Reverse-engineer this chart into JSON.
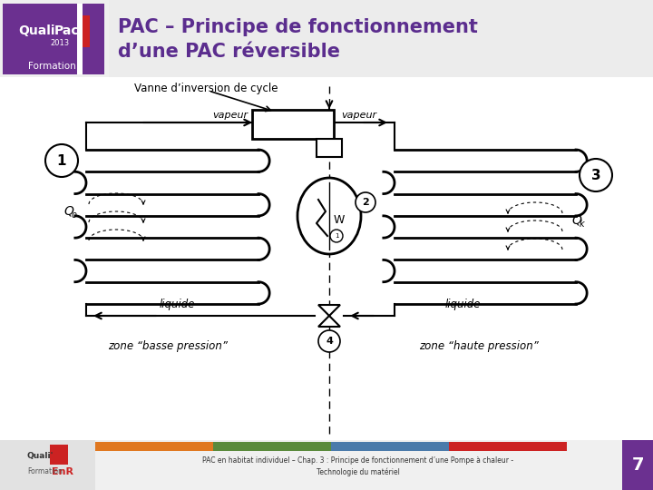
{
  "title_line1": "PAC – Principe de fonctionnement",
  "title_line2": "d’une PAC réversible",
  "title_color": "#5b2d8e",
  "footer_text_line1": "PAC en habitat individuel – Chap. 3 : Principe de fonctionnement d’une Pompe à chaleur -",
  "footer_text_line2": "Technologie du matériel",
  "footer_page": "7",
  "label_vanne": "Vanne d’inversion de cycle",
  "label_vapeur_left": "vapeur",
  "label_vapeur_right": "vapeur",
  "label_liquide_left": "liquide",
  "label_liquide_right": "liquide",
  "label_zone_left": "zone “basse pression”",
  "label_zone_right": "zone “haute pression”",
  "label_W": "W",
  "label_Qo": "Q",
  "label_Qo_sub": "o",
  "label_Qk": "Q",
  "label_Qk_sub": "k",
  "label_1": "1",
  "label_2": "2",
  "label_3": "3",
  "label_4": "4",
  "bg_color": "#ffffff",
  "footer_colors": [
    "#e07820",
    "#5a8a3c",
    "#4a7aaa",
    "#cc2222"
  ],
  "logo_purple": "#6b3090",
  "logo_red": "#cc2222"
}
